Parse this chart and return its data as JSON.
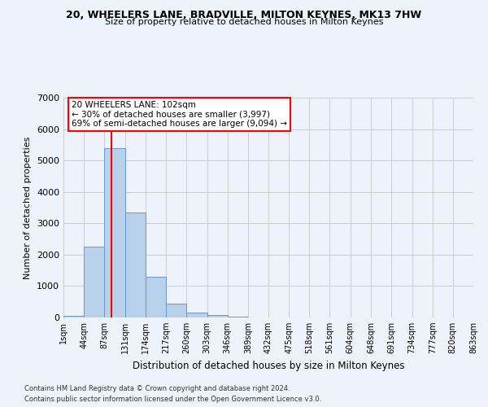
{
  "title_line1": "20, WHEELERS LANE, BRADVILLE, MILTON KEYNES, MK13 7HW",
  "title_line2": "Size of property relative to detached houses in Milton Keynes",
  "xlabel": "Distribution of detached houses by size in Milton Keynes",
  "ylabel": "Number of detached properties",
  "footer_line1": "Contains HM Land Registry data © Crown copyright and database right 2024.",
  "footer_line2": "Contains public sector information licensed under the Open Government Licence v3.0.",
  "annotation_line1": "20 WHEELERS LANE: 102sqm",
  "annotation_line2": "← 30% of detached houses are smaller (3,997)",
  "annotation_line3": "69% of semi-detached houses are larger (9,094) →",
  "bar_edges": [
    1,
    44,
    87,
    131,
    174,
    217,
    260,
    303,
    346,
    389,
    432,
    475,
    518,
    561,
    604,
    648,
    691,
    734,
    777,
    820,
    863
  ],
  "bar_heights": [
    50,
    2250,
    5400,
    3350,
    1300,
    430,
    160,
    80,
    30,
    10,
    5,
    3,
    2,
    1,
    1,
    1,
    0,
    0,
    0,
    0
  ],
  "bar_color": "#b8d0ea",
  "bar_edge_color": "#6699cc",
  "bar_linewidth": 0.7,
  "vline_x": 102,
  "vline_color": "red",
  "vline_linewidth": 1.5,
  "ylim": [
    0,
    7000
  ],
  "yticks": [
    0,
    1000,
    2000,
    3000,
    4000,
    5000,
    6000,
    7000
  ],
  "grid_color": "#cccccc",
  "background_color": "#eef2fb",
  "annotation_box_color": "white",
  "annotation_box_edge": "red",
  "tick_labels": [
    "1sqm",
    "44sqm",
    "87sqm",
    "131sqm",
    "174sqm",
    "217sqm",
    "260sqm",
    "303sqm",
    "346sqm",
    "389sqm",
    "432sqm",
    "475sqm",
    "518sqm",
    "561sqm",
    "604sqm",
    "648sqm",
    "691sqm",
    "734sqm",
    "777sqm",
    "820sqm",
    "863sqm"
  ]
}
